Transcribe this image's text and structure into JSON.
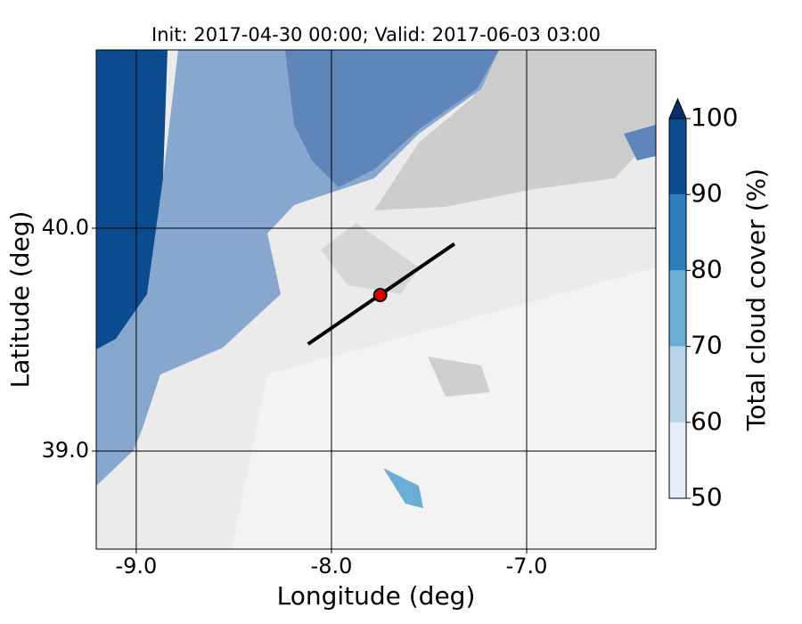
{
  "chart_data": {
    "type": "map",
    "title": "Init: 2017-04-30 00:00; Valid: 2017-06-03 03:00",
    "x_label": "Longitude (deg)",
    "y_label": "Latitude (deg)",
    "xlim": [
      -9.205,
      -6.338
    ],
    "ylim": [
      38.56,
      40.8
    ],
    "xticks": [
      {
        "value": -9,
        "label": "-9.0"
      },
      {
        "value": -8,
        "label": "-8.0"
      },
      {
        "value": -7,
        "label": "-7.0"
      }
    ],
    "yticks": [
      {
        "value": 39,
        "label": "39.0"
      },
      {
        "value": 40,
        "label": "40.0"
      }
    ],
    "grid": true,
    "transect": {
      "x": [
        -8.12,
        -7.37
      ],
      "y": [
        39.48,
        39.93
      ],
      "color": "#000000"
    },
    "point": {
      "x": -7.75,
      "y": 39.7,
      "color": "#e00000"
    },
    "colorbar": {
      "label": "Total cloud cover (%)",
      "levels": [
        50,
        60,
        70,
        80,
        90,
        100
      ],
      "colors": [
        "#e3eef8",
        "#b7d4ea",
        "#6aaed6",
        "#2e7ebc",
        "#0b4b90"
      ],
      "extend_color": "#08306b"
    }
  }
}
